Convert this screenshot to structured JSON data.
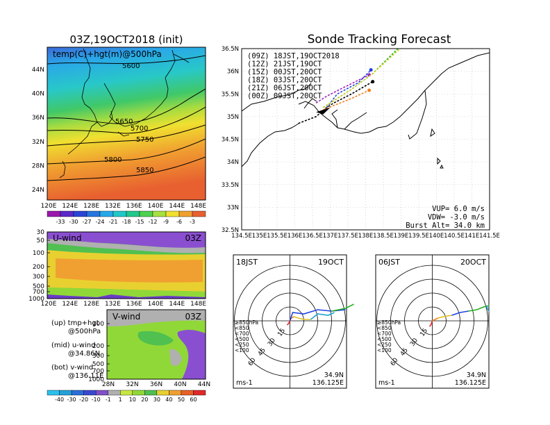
{
  "left_map": {
    "title": "03Z,19OCT2018 (init)",
    "label": "temp(C)+hgt(m)@500hPa",
    "lat_ticks": [
      "44N",
      "40N",
      "36N",
      "32N",
      "28N",
      "24N"
    ],
    "lon_ticks": [
      "120E",
      "124E",
      "128E",
      "132E",
      "136E",
      "140E",
      "144E",
      "148E"
    ],
    "contours": [
      "5600",
      "5650",
      "5700",
      "5750",
      "5800",
      "5850"
    ],
    "colorbar_ticks": [
      "-33",
      "-30",
      "-27",
      "-24",
      "-21",
      "-18",
      "-15",
      "-12",
      "-9",
      "-6",
      "-3"
    ],
    "colorbar_colors": [
      "#9a18ac",
      "#5b29c8",
      "#2a45d6",
      "#2675e0",
      "#26a8e8",
      "#22c8c8",
      "#22c88c",
      "#50d050",
      "#a8e040",
      "#f0e030",
      "#f0a030",
      "#e86030"
    ]
  },
  "uwind": {
    "title": "U-wind",
    "time": "03Z",
    "y_ticks": [
      "30",
      "50",
      "100",
      "200",
      "300",
      "500",
      "700",
      "1000"
    ],
    "x_ticks": [
      "120E",
      "124E",
      "128E",
      "132E",
      "136E",
      "140E",
      "144E",
      "148E"
    ]
  },
  "vwind": {
    "title": "V-wind",
    "time": "03Z",
    "y_ticks": [
      "100",
      "200",
      "300",
      "500",
      "700",
      "1000"
    ],
    "x_ticks": [
      "28N",
      "32N",
      "36N",
      "40N",
      "44N"
    ]
  },
  "notes": [
    {
      "a": "(up)  tmp+hgt",
      "b": "@500hPa"
    },
    {
      "a": "(mid)  u-wind",
      "b": "@34.86N"
    },
    {
      "a": "(bot)  v-wind",
      "b": "@136.11E"
    }
  ],
  "wind_colorbar": {
    "ticks": [
      "-40",
      "-30",
      "-20",
      "-10",
      "-1",
      "1",
      "10",
      "20",
      "30",
      "40",
      "50",
      "60"
    ],
    "colors": [
      "#2ac0ee",
      "#24a0d8",
      "#2a6ed8",
      "#3a48d0",
      "#8050c8",
      "#b0b0b0",
      "#c8e840",
      "#90d838",
      "#50c050",
      "#e8d030",
      "#f0a030",
      "#e86028",
      "#e02828"
    ]
  },
  "forecast": {
    "title": "Sonde Tracking Forecast",
    "legend": [
      {
        "label": "(09Z)  18JST,19OCT2018",
        "color": "#000000"
      },
      {
        "label": "(12Z)  21JST,19OCT",
        "color": "#a020c0"
      },
      {
        "label": "(15Z)  00JST,20OCT",
        "color": "#2040e0"
      },
      {
        "label": "(18Z)  03JST,20OCT",
        "color": "#20b020"
      },
      {
        "label": "(21Z)  06JST,20OCT",
        "color": "#d0d020"
      },
      {
        "label": "(00Z)  09JST,20OCT",
        "color": "#f08020"
      }
    ],
    "lat_ticks": [
      "36.5N",
      "36N",
      "35.5N",
      "35N",
      "34.5N",
      "34N",
      "33.5N",
      "33N",
      "32.5N"
    ],
    "lon_ticks": [
      "134.5E",
      "135E",
      "135.5E",
      "136E",
      "136.5E",
      "137E",
      "137.5E",
      "138E",
      "138.5E",
      "139E",
      "139.5E",
      "140E",
      "140.5E",
      "141E",
      "141.5E"
    ],
    "vup": "VUP=  6.0  m/s",
    "vdw": "VDW=  -3.0  m/s",
    "burst": "Burst Alt=  34.0  km"
  },
  "chart_data": [
    {
      "type": "line",
      "title": "Sonde Tracking Forecast",
      "xlim": [
        134.5,
        141.5
      ],
      "ylim": [
        32.5,
        36.5
      ],
      "series": [
        {
          "name": "(09Z)  18JST,19OCT2018",
          "points": [
            [
              136.1,
              34.85
            ],
            [
              136.6,
              35.0
            ],
            [
              136.9,
              35.2
            ],
            [
              137.1,
              35.3
            ],
            [
              137.6,
              35.5
            ],
            [
              138.2,
              35.77
            ]
          ]
        },
        {
          "name": "(12Z)  21JST,19OCT",
          "points": [
            [
              136.6,
              35.3
            ],
            [
              136.9,
              35.45
            ],
            [
              137.4,
              35.65
            ],
            [
              138.1,
              35.92
            ]
          ]
        },
        {
          "name": "(15Z)  00JST,20OCT",
          "points": [
            [
              136.9,
              35.2
            ],
            [
              137.2,
              35.5
            ],
            [
              137.8,
              35.75
            ],
            [
              138.15,
              36.03
            ]
          ]
        },
        {
          "name": "(18Z)  03JST,20OCT",
          "points": [
            [
              136.8,
              35.2
            ],
            [
              137.6,
              35.6
            ],
            [
              138.2,
              35.95
            ],
            [
              139.3,
              36.8
            ]
          ]
        },
        {
          "name": "(21Z)  06JST,20OCT",
          "points": [
            [
              136.8,
              35.2
            ],
            [
              137.6,
              35.6
            ],
            [
              138.2,
              35.95
            ],
            [
              139.4,
              36.8
            ]
          ]
        },
        {
          "name": "(00Z)  09JST,20OCT",
          "points": [
            [
              136.8,
              35.15
            ],
            [
              137.6,
              35.4
            ],
            [
              138.1,
              35.58
            ]
          ]
        }
      ]
    },
    {
      "type": "polar",
      "time_label": "18JST",
      "date_label": "19OCT",
      "center_label": [
        "34.9N",
        "136.125E"
      ],
      "ring_labels": [
        "15",
        "30",
        "45",
        "60"
      ],
      "unit": "ms-1",
      "levels": [
        {
          "label": "≥850hPa",
          "color": "#e02828"
        },
        {
          "label": "<850",
          "color": "#f08020"
        },
        {
          "label": "<700",
          "color": "#e0c020"
        },
        {
          "label": "<500",
          "color": "#20b020"
        },
        {
          "label": "<250",
          "color": "#20a0d0"
        },
        {
          "label": "<100",
          "color": "#2040e0"
        }
      ]
    },
    {
      "type": "polar",
      "time_label": "06JST",
      "date_label": "20OCT",
      "center_label": [
        "34.9N",
        "136.125E"
      ],
      "ring_labels": [
        "15",
        "30",
        "45",
        "60"
      ],
      "unit": "ms-1",
      "levels": [
        {
          "label": "≥850hPa",
          "color": "#e02828"
        },
        {
          "label": "<850",
          "color": "#f08020"
        },
        {
          "label": "<700",
          "color": "#e0c020"
        },
        {
          "label": "<500",
          "color": "#20b020"
        },
        {
          "label": "<250",
          "color": "#20a0d0"
        },
        {
          "label": "<100",
          "color": "#2040e0"
        }
      ]
    }
  ]
}
